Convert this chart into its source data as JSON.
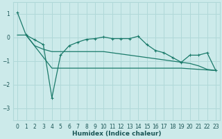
{
  "xlabel": "Humidex (Indice chaleur)",
  "bg_color": "#cceaea",
  "grid_color": "#b0d8d8",
  "line_color": "#1a7a6a",
  "xlim": [
    -0.5,
    23.5
  ],
  "ylim": [
    -3.5,
    1.5
  ],
  "yticks": [
    1,
    0,
    -1,
    -2,
    -3
  ],
  "xticks": [
    0,
    1,
    2,
    3,
    4,
    5,
    6,
    7,
    8,
    9,
    10,
    11,
    12,
    13,
    14,
    15,
    16,
    17,
    18,
    19,
    20,
    21,
    22,
    23
  ],
  "line1_x": [
    0,
    1,
    2,
    3,
    4,
    5,
    6,
    7,
    8,
    9,
    10,
    11,
    12,
    13,
    14,
    15,
    16,
    17,
    18,
    19,
    20,
    21,
    22,
    23
  ],
  "line1_y": [
    1.05,
    0.1,
    -0.1,
    -0.3,
    -2.55,
    -0.75,
    -0.35,
    -0.2,
    -0.08,
    -0.05,
    0.02,
    -0.05,
    -0.05,
    -0.05,
    0.05,
    -0.3,
    -0.55,
    -0.65,
    -0.85,
    -1.05,
    -0.75,
    -0.75,
    -0.65,
    -1.4
  ],
  "line2_x": [
    0,
    1,
    2,
    3,
    4,
    5,
    6,
    7,
    8,
    9,
    10,
    11,
    12,
    13,
    14,
    15,
    16,
    17,
    18,
    19,
    20,
    21,
    22,
    23
  ],
  "line2_y": [
    0.1,
    0.1,
    -0.35,
    -0.5,
    -0.6,
    -0.6,
    -0.6,
    -0.6,
    -0.6,
    -0.6,
    -0.6,
    -0.65,
    -0.7,
    -0.75,
    -0.8,
    -0.85,
    -0.9,
    -0.95,
    -1.0,
    -1.05,
    -1.1,
    -1.2,
    -1.35,
    -1.4
  ],
  "line3_x": [
    1,
    4,
    19,
    23
  ],
  "line3_y": [
    0.1,
    -1.3,
    -1.3,
    -1.4
  ]
}
